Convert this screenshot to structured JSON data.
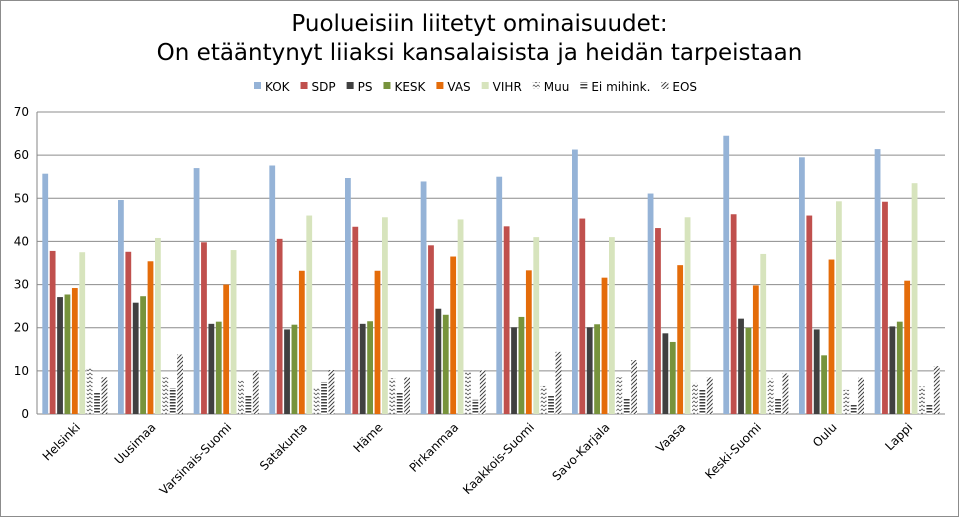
{
  "chart_data": {
    "type": "bar",
    "title": "Puolueisiin liitetyt ominaisuudet:",
    "subtitle": "On etääntynyt liiaksi kansalaisista ja heidän tarpeistaan",
    "xlabel": "",
    "ylabel": "",
    "ylim": [
      0,
      70
    ],
    "yticks": [
      0,
      10,
      20,
      30,
      40,
      50,
      60,
      70
    ],
    "grid": true,
    "legend_position": "top",
    "categories": [
      "Helsinki",
      "Uusimaa",
      "Varsinais-Suomi",
      "Satakunta",
      "Häme",
      "Pirkanmaa",
      "Kaakkois-Suomi",
      "Savo-Karjala",
      "Vaasa",
      "Keski-Suomi",
      "Oulu",
      "Lappi"
    ],
    "series": [
      {
        "name": "KOK",
        "color": "#95b3d7",
        "pattern": "solid",
        "values": [
          55.7,
          49.6,
          57.0,
          57.6,
          54.7,
          53.9,
          55.0,
          61.3,
          51.1,
          64.5,
          59.5,
          61.4
        ]
      },
      {
        "name": "SDP",
        "color": "#c0504d",
        "pattern": "solid",
        "values": [
          37.8,
          37.6,
          39.8,
          40.6,
          43.4,
          39.1,
          43.5,
          45.3,
          43.1,
          46.3,
          46.0,
          49.2
        ]
      },
      {
        "name": "PS",
        "color": "#404040",
        "pattern": "solid",
        "values": [
          27.1,
          25.8,
          20.9,
          19.6,
          20.9,
          24.4,
          20.1,
          20.1,
          18.7,
          22.1,
          19.6,
          20.3
        ]
      },
      {
        "name": "KESK",
        "color": "#77933c",
        "pattern": "solid",
        "values": [
          27.7,
          27.3,
          21.4,
          20.7,
          21.5,
          23.0,
          22.5,
          20.8,
          16.7,
          20.0,
          13.6,
          21.4
        ]
      },
      {
        "name": "VAS",
        "color": "#e46c0a",
        "pattern": "solid",
        "values": [
          29.2,
          35.4,
          30.0,
          33.2,
          33.2,
          36.5,
          33.3,
          31.6,
          34.5,
          29.8,
          35.8,
          30.9
        ]
      },
      {
        "name": "VIHR",
        "color": "#d7e4bd",
        "pattern": "solid",
        "values": [
          37.5,
          40.8,
          38.0,
          46.0,
          45.6,
          45.1,
          41.0,
          41.0,
          45.6,
          37.1,
          49.3,
          53.5
        ]
      },
      {
        "name": "Muu",
        "color": "#595959",
        "pattern": "zigzag",
        "values": [
          10.8,
          8.5,
          7.7,
          6.1,
          8.3,
          9.8,
          6.5,
          8.5,
          7.2,
          8.2,
          5.6,
          6.4
        ]
      },
      {
        "name": "Ei mihink.",
        "color": "#404040",
        "pattern": "hlines",
        "values": [
          5.2,
          6.0,
          4.3,
          7.4,
          5.2,
          3.3,
          4.4,
          3.5,
          5.7,
          3.8,
          2.2,
          2.1
        ]
      },
      {
        "name": "EOS",
        "color": "#404040",
        "pattern": "diag",
        "values": [
          8.5,
          13.8,
          10.0,
          10.2,
          8.5,
          10.1,
          14.4,
          12.5,
          8.5,
          9.4,
          8.4,
          11.1
        ]
      }
    ]
  }
}
